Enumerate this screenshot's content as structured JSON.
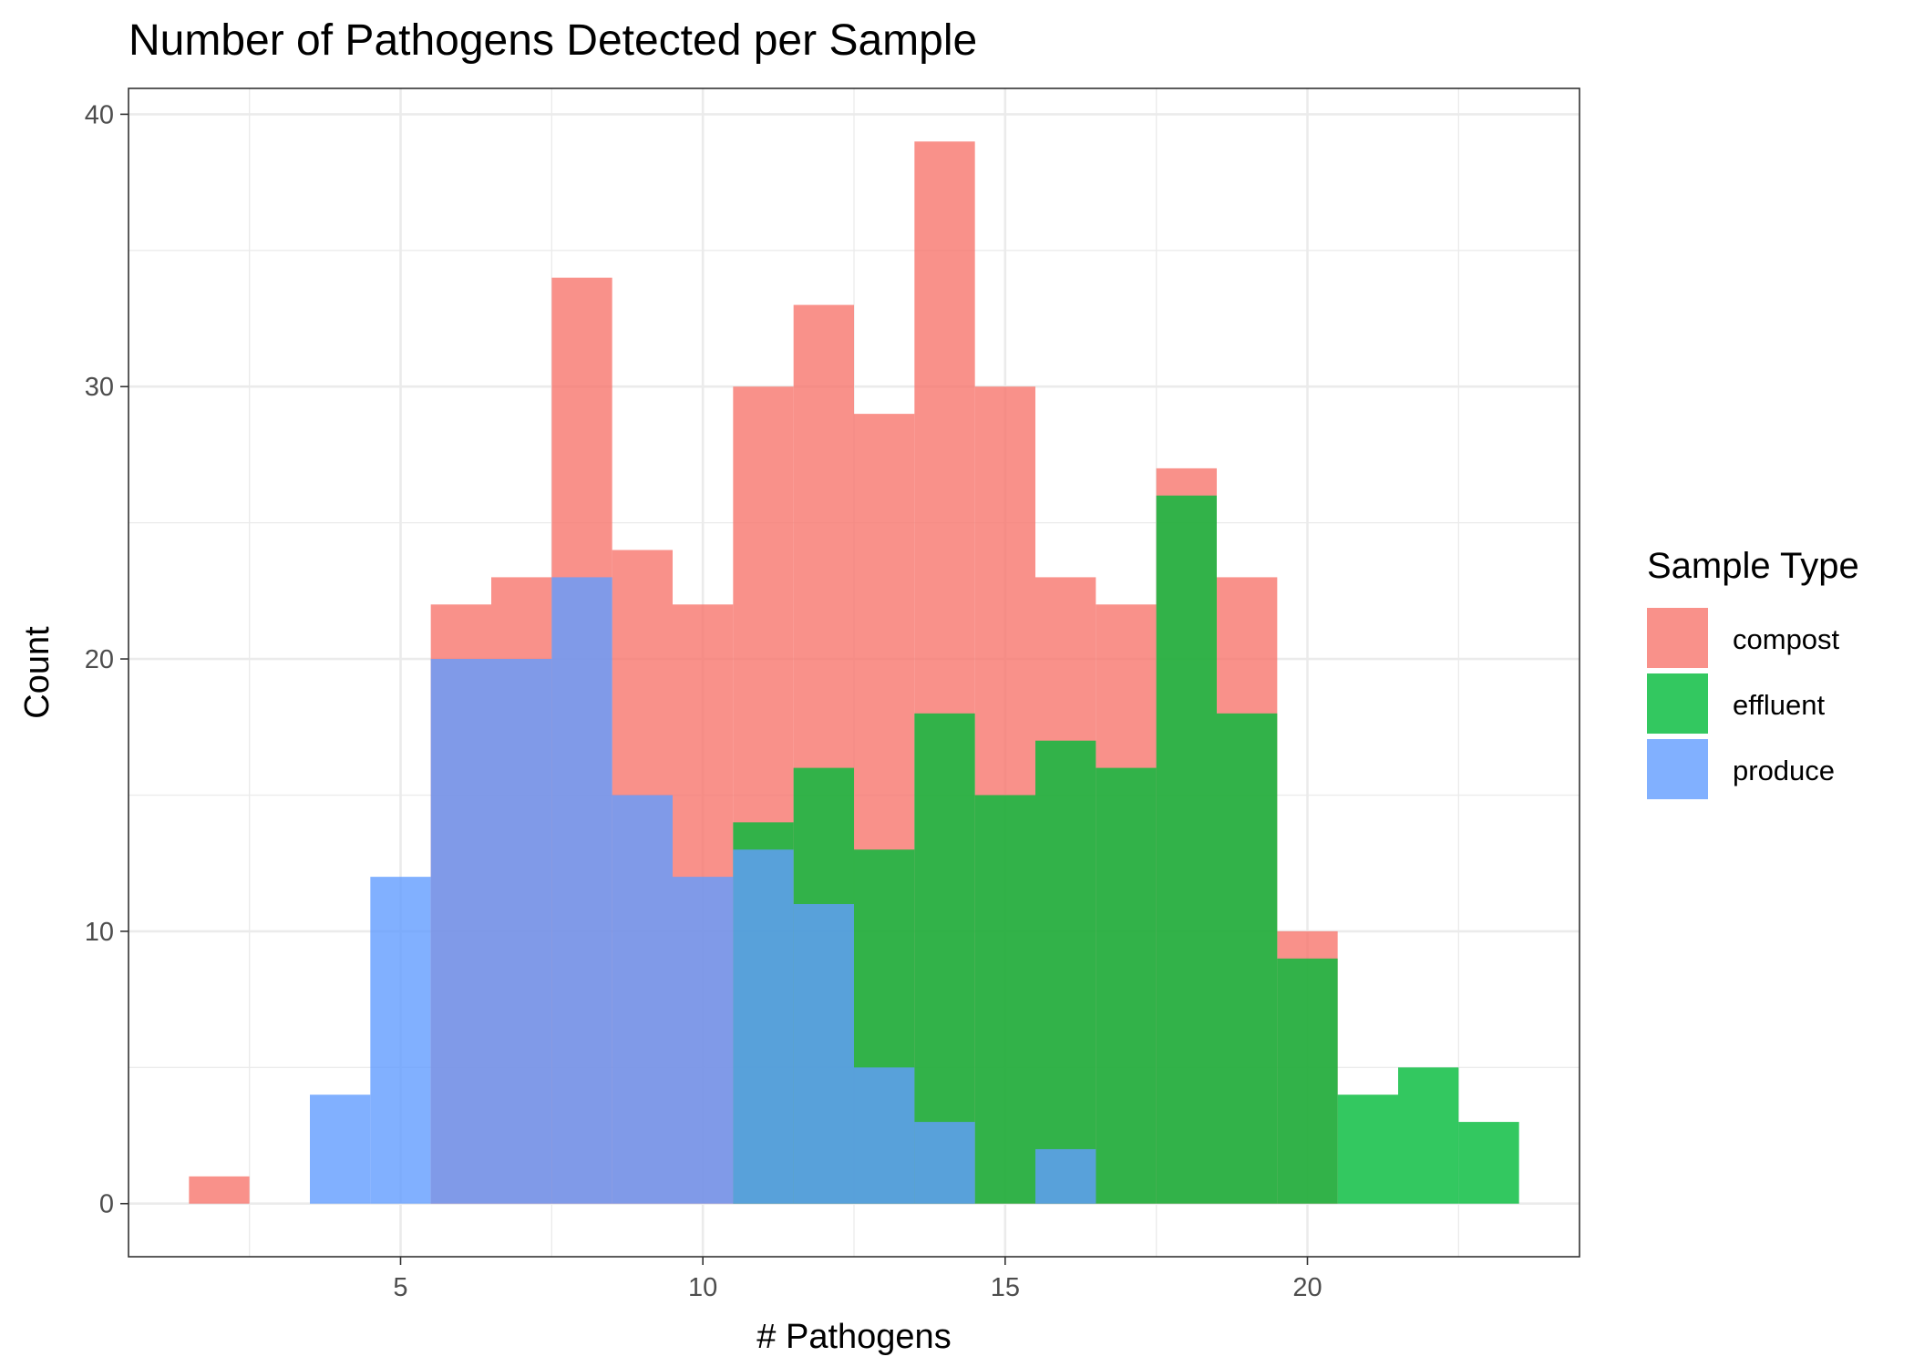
{
  "chart_data": {
    "type": "bar",
    "subtype": "overlapping-histogram",
    "title": "Number of Pathogens Detected per Sample",
    "xlabel": "# Pathogens",
    "ylabel": "Count",
    "xlim": [
      0.5,
      24.5
    ],
    "ylim": [
      -1.95,
      40.95
    ],
    "x_ticks": [
      5,
      10,
      15,
      20
    ],
    "y_ticks": [
      0,
      10,
      20,
      30,
      40
    ],
    "grid": true,
    "bin_width": 1,
    "legend": {
      "title": "Sample Type",
      "position": "right"
    },
    "series": [
      {
        "name": "compost",
        "color": "#F8766D",
        "x": [
          2,
          6,
          7,
          8,
          9,
          10,
          11,
          12,
          13,
          14,
          15,
          16,
          17,
          18,
          19,
          20
        ],
        "values": [
          1,
          22,
          23,
          34,
          24,
          22,
          30,
          33,
          29,
          39,
          30,
          23,
          22,
          27,
          23,
          10
        ]
      },
      {
        "name": "effluent",
        "color": "#00BA38",
        "x": [
          11,
          12,
          13,
          14,
          15,
          16,
          17,
          18,
          19,
          20,
          21,
          22,
          23
        ],
        "values": [
          14,
          16,
          13,
          18,
          15,
          17,
          16,
          26,
          18,
          9,
          4,
          5,
          3
        ]
      },
      {
        "name": "produce",
        "color": "#619CFF",
        "x": [
          4,
          5,
          6,
          7,
          8,
          9,
          10,
          11,
          12,
          13,
          14,
          16
        ],
        "values": [
          4,
          12,
          20,
          20,
          23,
          15,
          12,
          13,
          11,
          5,
          3,
          2
        ]
      }
    ]
  }
}
